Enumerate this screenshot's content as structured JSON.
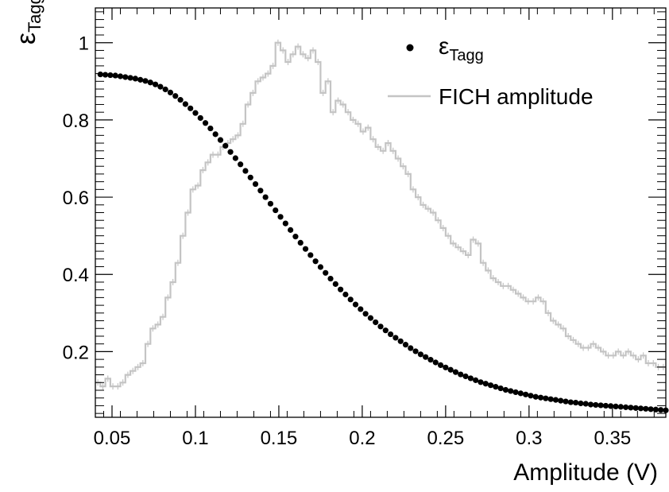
{
  "chart_data": {
    "type": "scatter",
    "xlabel": "Amplitude (V)",
    "ylabel": {
      "main": "ε",
      "sub": "Tagg"
    },
    "xlim": [
      0.04,
      0.382
    ],
    "ylim": [
      0.03,
      1.09
    ],
    "x_ticks": [
      {
        "value": 0.05,
        "label": "0.05"
      },
      {
        "value": 0.1,
        "label": "0.1"
      },
      {
        "value": 0.15,
        "label": "0.15"
      },
      {
        "value": 0.2,
        "label": "0.2"
      },
      {
        "value": 0.25,
        "label": "0.25"
      },
      {
        "value": 0.3,
        "label": "0.3"
      },
      {
        "value": 0.35,
        "label": "0.35"
      }
    ],
    "y_ticks": [
      {
        "value": 0.2,
        "label": "0.2"
      },
      {
        "value": 0.4,
        "label": "0.4"
      },
      {
        "value": 0.6,
        "label": "0.6"
      },
      {
        "value": 0.8,
        "label": "0.8"
      },
      {
        "value": 1.0,
        "label": "1"
      }
    ],
    "grid": false,
    "legend_position": "top-right",
    "series": [
      {
        "kind": "points",
        "legend": {
          "main": "ε",
          "sub": "Tagg"
        },
        "color": "#000000",
        "x": [
          0.043,
          0.046,
          0.049,
          0.052,
          0.055,
          0.058,
          0.061,
          0.064,
          0.067,
          0.07,
          0.073,
          0.076,
          0.079,
          0.082,
          0.085,
          0.088,
          0.091,
          0.094,
          0.097,
          0.1,
          0.103,
          0.106,
          0.109,
          0.112,
          0.115,
          0.118,
          0.121,
          0.124,
          0.127,
          0.13,
          0.133,
          0.136,
          0.139,
          0.142,
          0.145,
          0.148,
          0.151,
          0.154,
          0.157,
          0.16,
          0.163,
          0.166,
          0.169,
          0.172,
          0.175,
          0.178,
          0.181,
          0.184,
          0.187,
          0.19,
          0.193,
          0.196,
          0.199,
          0.202,
          0.205,
          0.208,
          0.211,
          0.214,
          0.217,
          0.22,
          0.223,
          0.226,
          0.229,
          0.232,
          0.235,
          0.238,
          0.241,
          0.244,
          0.247,
          0.25,
          0.253,
          0.256,
          0.259,
          0.262,
          0.265,
          0.268,
          0.271,
          0.274,
          0.277,
          0.28,
          0.283,
          0.286,
          0.289,
          0.292,
          0.295,
          0.298,
          0.301,
          0.304,
          0.307,
          0.31,
          0.313,
          0.316,
          0.319,
          0.322,
          0.325,
          0.328,
          0.331,
          0.334,
          0.337,
          0.34,
          0.343,
          0.346,
          0.349,
          0.352,
          0.355,
          0.358,
          0.361,
          0.364,
          0.367,
          0.37,
          0.373,
          0.376,
          0.379,
          0.382
        ],
        "y": [
          0.918,
          0.917,
          0.916,
          0.915,
          0.913,
          0.911,
          0.909,
          0.907,
          0.904,
          0.901,
          0.897,
          0.892,
          0.886,
          0.879,
          0.871,
          0.862,
          0.852,
          0.841,
          0.83,
          0.818,
          0.805,
          0.792,
          0.778,
          0.763,
          0.748,
          0.733,
          0.717,
          0.701,
          0.685,
          0.668,
          0.651,
          0.634,
          0.617,
          0.6,
          0.583,
          0.566,
          0.549,
          0.532,
          0.515,
          0.498,
          0.482,
          0.466,
          0.45,
          0.434,
          0.419,
          0.404,
          0.389,
          0.375,
          0.361,
          0.348,
          0.335,
          0.322,
          0.31,
          0.298,
          0.287,
          0.276,
          0.265,
          0.255,
          0.245,
          0.236,
          0.227,
          0.218,
          0.209,
          0.201,
          0.193,
          0.186,
          0.179,
          0.172,
          0.165,
          0.159,
          0.153,
          0.147,
          0.141,
          0.136,
          0.131,
          0.126,
          0.121,
          0.117,
          0.113,
          0.109,
          0.105,
          0.101,
          0.098,
          0.095,
          0.092,
          0.089,
          0.086,
          0.083,
          0.081,
          0.079,
          0.077,
          0.075,
          0.073,
          0.071,
          0.069,
          0.068,
          0.066,
          0.065,
          0.063,
          0.062,
          0.061,
          0.06,
          0.059,
          0.058,
          0.057,
          0.056,
          0.055,
          0.054,
          0.053,
          0.052,
          0.051,
          0.05,
          0.049,
          0.048
        ]
      },
      {
        "kind": "step-histogram",
        "legend": "FICH amplitude",
        "color": "#c4c4c4",
        "x": [
          0.04,
          0.043,
          0.046,
          0.049,
          0.052,
          0.055,
          0.058,
          0.061,
          0.064,
          0.067,
          0.07,
          0.073,
          0.076,
          0.079,
          0.082,
          0.085,
          0.088,
          0.091,
          0.094,
          0.097,
          0.1,
          0.103,
          0.106,
          0.109,
          0.112,
          0.115,
          0.118,
          0.121,
          0.124,
          0.127,
          0.13,
          0.133,
          0.136,
          0.139,
          0.142,
          0.145,
          0.148,
          0.151,
          0.154,
          0.157,
          0.16,
          0.163,
          0.166,
          0.169,
          0.172,
          0.175,
          0.178,
          0.181,
          0.184,
          0.187,
          0.19,
          0.193,
          0.196,
          0.199,
          0.202,
          0.205,
          0.208,
          0.211,
          0.214,
          0.217,
          0.22,
          0.223,
          0.226,
          0.229,
          0.232,
          0.235,
          0.238,
          0.241,
          0.244,
          0.247,
          0.25,
          0.253,
          0.256,
          0.259,
          0.262,
          0.265,
          0.268,
          0.271,
          0.274,
          0.277,
          0.28,
          0.283,
          0.286,
          0.289,
          0.292,
          0.295,
          0.298,
          0.301,
          0.304,
          0.307,
          0.31,
          0.313,
          0.316,
          0.319,
          0.322,
          0.325,
          0.328,
          0.331,
          0.334,
          0.337,
          0.34,
          0.343,
          0.346,
          0.349,
          0.352,
          0.355,
          0.358,
          0.361,
          0.364,
          0.367,
          0.37,
          0.373,
          0.376,
          0.379
        ],
        "y": [
          0.12,
          0.11,
          0.13,
          0.11,
          0.11,
          0.12,
          0.14,
          0.15,
          0.16,
          0.17,
          0.22,
          0.26,
          0.27,
          0.29,
          0.34,
          0.38,
          0.43,
          0.5,
          0.56,
          0.62,
          0.63,
          0.67,
          0.69,
          0.71,
          0.71,
          0.73,
          0.74,
          0.75,
          0.76,
          0.79,
          0.84,
          0.87,
          0.9,
          0.91,
          0.92,
          0.94,
          1.0,
          0.98,
          0.95,
          0.97,
          0.99,
          0.97,
          0.96,
          0.98,
          0.95,
          0.87,
          0.9,
          0.82,
          0.85,
          0.84,
          0.82,
          0.8,
          0.79,
          0.77,
          0.78,
          0.75,
          0.73,
          0.72,
          0.74,
          0.72,
          0.7,
          0.68,
          0.66,
          0.62,
          0.6,
          0.58,
          0.57,
          0.56,
          0.54,
          0.52,
          0.5,
          0.48,
          0.47,
          0.46,
          0.45,
          0.49,
          0.48,
          0.43,
          0.41,
          0.39,
          0.38,
          0.37,
          0.37,
          0.36,
          0.35,
          0.34,
          0.33,
          0.33,
          0.34,
          0.33,
          0.3,
          0.28,
          0.27,
          0.26,
          0.24,
          0.23,
          0.22,
          0.21,
          0.21,
          0.22,
          0.21,
          0.2,
          0.19,
          0.19,
          0.2,
          0.19,
          0.2,
          0.19,
          0.18,
          0.19,
          0.17,
          0.17,
          0.16,
          0.16
        ]
      }
    ]
  }
}
